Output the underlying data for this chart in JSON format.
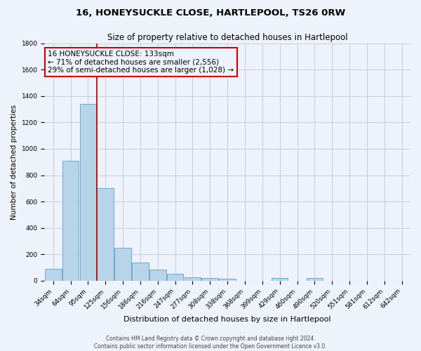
{
  "title_line1": "16, HONEYSUCKLE CLOSE, HARTLEPOOL, TS26 0RW",
  "title_line2": "Size of property relative to detached houses in Hartlepool",
  "xlabel": "Distribution of detached houses by size in Hartlepool",
  "ylabel": "Number of detached properties",
  "categories": [
    "34sqm",
    "64sqm",
    "95sqm",
    "125sqm",
    "156sqm",
    "186sqm",
    "216sqm",
    "247sqm",
    "277sqm",
    "308sqm",
    "338sqm",
    "368sqm",
    "399sqm",
    "429sqm",
    "460sqm",
    "490sqm",
    "520sqm",
    "551sqm",
    "581sqm",
    "612sqm",
    "642sqm"
  ],
  "values": [
    90,
    910,
    1340,
    700,
    248,
    140,
    85,
    55,
    28,
    22,
    15,
    0,
    0,
    18,
    0,
    18,
    0,
    0,
    0,
    0,
    0
  ],
  "bar_color": "#b8d4e8",
  "bar_edge_color": "#6aaad4",
  "vline_color": "#cc0000",
  "vline_position": 3,
  "annotation_title": "16 HONEYSUCKLE CLOSE: 133sqm",
  "annotation_line2": "← 71% of detached houses are smaller (2,556)",
  "annotation_line3": "29% of semi-detached houses are larger (1,028) →",
  "annotation_box_color": "#cc0000",
  "ylim": [
    0,
    1800
  ],
  "yticks": [
    0,
    200,
    400,
    600,
    800,
    1000,
    1200,
    1400,
    1600,
    1800
  ],
  "footer_line1": "Contains HM Land Registry data © Crown copyright and database right 2024.",
  "footer_line2": "Contains public sector information licensed under the Open Government Licence v3.0.",
  "background_color": "#eef2fa",
  "grid_color": "#c8d0e0",
  "title_fontsize": 9.5,
  "subtitle_fontsize": 8.5,
  "xlabel_fontsize": 8,
  "ylabel_fontsize": 7.5,
  "tick_fontsize": 6.5,
  "annotation_fontsize": 7.5,
  "footer_fontsize": 5.5
}
